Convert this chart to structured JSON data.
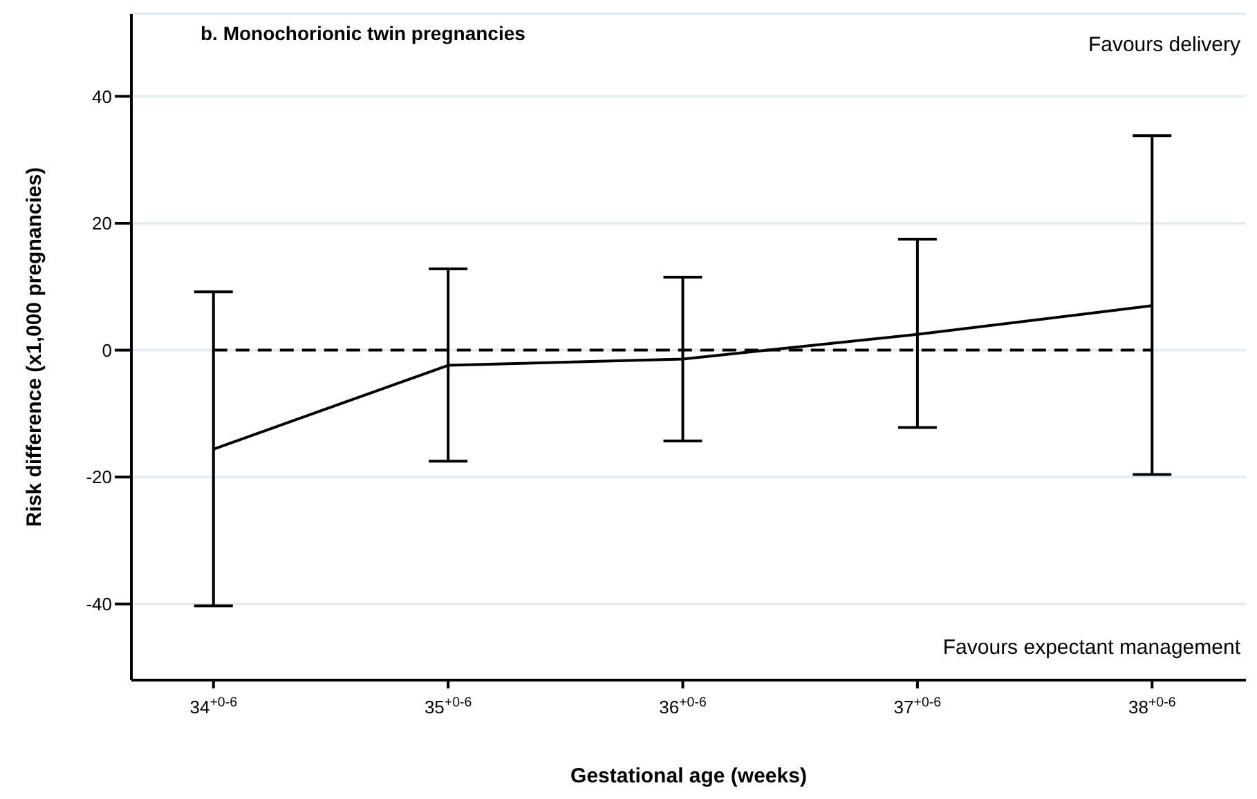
{
  "chart_data": {
    "type": "line",
    "title": "b. Monochorionic twin pregnancies",
    "xlabel": "Gestational age (weeks)",
    "ylabel": "Risk difference (x1,000 pregnancies)",
    "categories": [
      "34$^{+0-6}$",
      "35$^{+0-6}$",
      "36$^{+0-6}$",
      "37$^{+0-6}$",
      "38$^{+0-6}$"
    ],
    "series": [
      {
        "color": "#000000",
        "values": [
          -15.6,
          -2.4,
          -1.4,
          2.5,
          7.0
        ],
        "errors": [
          [
            -40.3,
            9.2
          ],
          [
            -17.5,
            12.8
          ],
          [
            -14.3,
            11.5
          ],
          [
            -12.2,
            17.5
          ],
          [
            -19.6,
            33.8
          ]
        ]
      }
    ],
    "ylim": [
      -52,
      53
    ],
    "yticks": [
      -40,
      -20,
      0,
      20,
      40
    ],
    "grid": "y",
    "marker": "none",
    "line_style": "solid",
    "ref_lines": [
      {
        "axis": "y",
        "value": 0,
        "color": "#000000",
        "line_style": "dashed"
      }
    ],
    "annotations": [
      "Favours delivery",
      "Favours expectant management"
    ]
  }
}
